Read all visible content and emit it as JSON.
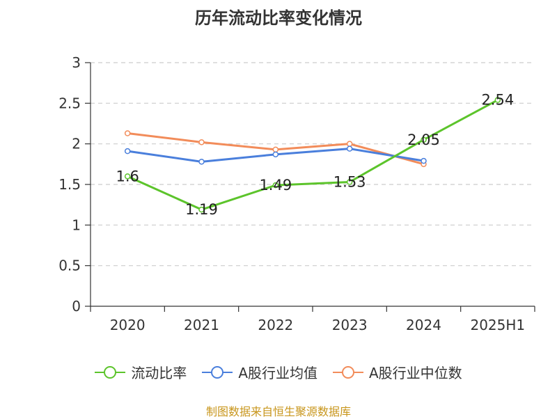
{
  "chart_data": {
    "type": "line",
    "title": "历年流动比率变化情况",
    "categories": [
      "2020",
      "2021",
      "2022",
      "2023",
      "2024",
      "2025H1"
    ],
    "ylim": [
      0,
      3
    ],
    "yticks": [
      "0",
      "0.5",
      "1",
      "1.5",
      "2",
      "2.5",
      "3"
    ],
    "grid": "horizontal-dashed",
    "legend_position": "bottom",
    "series": [
      {
        "name": "流动比率",
        "color": "#5cc42b",
        "values": [
          1.6,
          1.19,
          1.49,
          1.53,
          2.05,
          2.54
        ],
        "labels": [
          "1.6",
          "1.19",
          "1.49",
          "1.53",
          "2.05",
          "2.54"
        ]
      },
      {
        "name": "A股行业均值",
        "color": "#4a7fdc",
        "values": [
          1.91,
          1.78,
          1.87,
          1.94,
          1.79,
          null
        ]
      },
      {
        "name": "A股行业中位数",
        "color": "#f28c5a",
        "values": [
          2.13,
          2.02,
          1.93,
          2.0,
          1.75,
          null
        ]
      }
    ]
  },
  "source": "制图数据来自恒生聚源数据库"
}
